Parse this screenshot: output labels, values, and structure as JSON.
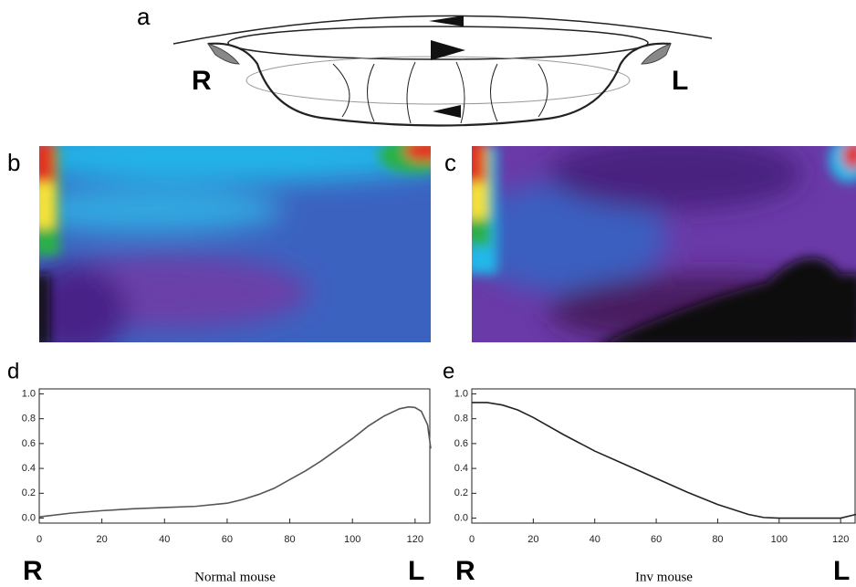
{
  "panel_labels": [
    "a",
    "b",
    "c"
  ],
  "diagram": {
    "labels": [
      "R",
      "L"
    ]
  },
  "chart_data": [
    {
      "type": "line",
      "panel": "d",
      "xlabel": "Normal mouse",
      "annotations": [
        "R",
        "L"
      ],
      "x": [
        0,
        10,
        20,
        30,
        40,
        50,
        60,
        65,
        70,
        75,
        80,
        85,
        90,
        95,
        100,
        105,
        110,
        115,
        118,
        120,
        122,
        124,
        125
      ],
      "values": [
        0.01,
        0.04,
        0.06,
        0.075,
        0.085,
        0.095,
        0.12,
        0.15,
        0.19,
        0.24,
        0.31,
        0.38,
        0.46,
        0.55,
        0.64,
        0.74,
        0.82,
        0.88,
        0.895,
        0.89,
        0.86,
        0.75,
        0.56
      ],
      "color": "#555555",
      "xlim": [
        0,
        125
      ],
      "ylim": [
        -0.04,
        1.04
      ],
      "xticks": [
        0,
        20,
        40,
        60,
        80,
        100,
        120
      ],
      "yticks": [
        {
          "value": 0,
          "label": "0.0"
        },
        0.2,
        0.4,
        0.6,
        0.8,
        {
          "value": 1,
          "label": "1.0"
        }
      ]
    },
    {
      "type": "line",
      "panel": "e",
      "xlabel": "Inv mouse",
      "annotations": [
        "R",
        "L"
      ],
      "x": [
        0,
        5,
        10,
        15,
        20,
        30,
        40,
        50,
        60,
        70,
        80,
        90,
        95,
        100,
        110,
        120,
        125
      ],
      "values": [
        0.93,
        0.93,
        0.91,
        0.87,
        0.81,
        0.67,
        0.54,
        0.43,
        0.32,
        0.21,
        0.11,
        0.03,
        0.005,
        0,
        0,
        0,
        0.03
      ],
      "color": "#222222",
      "xlim": [
        0,
        125
      ],
      "ylim": [
        -0.04,
        1.04
      ],
      "xticks": [
        0,
        20,
        40,
        60,
        80,
        100,
        120
      ],
      "yticks": [
        {
          "value": 0,
          "label": "0.0"
        },
        0.2,
        0.4,
        0.6,
        0.8,
        {
          "value": 1,
          "label": "1.0"
        }
      ]
    }
  ]
}
